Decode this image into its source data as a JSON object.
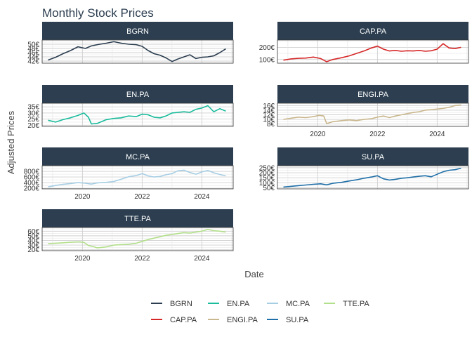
{
  "chart_data": {
    "type": "line",
    "title": "Monthly Stock Prices",
    "xlabel": "Date",
    "ylabel": "Adjusted Prices",
    "legend_position": "bottom",
    "x_ticks": [
      "2020",
      "2022",
      "2024"
    ],
    "x_tick_values": [
      2020,
      2022,
      2024
    ],
    "xlim": [
      2018.65,
      2025.05
    ],
    "series": [
      {
        "name": "BGRN",
        "color": "#2c3e50",
        "ylim": [
          41,
          52
        ],
        "y_ticks": [
          42,
          44,
          46,
          48,
          50
        ],
        "y_tick_labels": [
          "42€",
          "44€",
          "46€",
          "48€",
          "50€"
        ],
        "x": [
          2018.85,
          2019.1,
          2019.35,
          2019.6,
          2019.85,
          2020.1,
          2020.3,
          2020.5,
          2020.8,
          2021.05,
          2021.3,
          2021.55,
          2021.8,
          2022.0,
          2022.2,
          2022.4,
          2022.6,
          2022.8,
          2023.0,
          2023.2,
          2023.4,
          2023.6,
          2023.8,
          2024.0,
          2024.2,
          2024.4,
          2024.6,
          2024.8
        ],
        "y": [
          42.5,
          43.8,
          45.5,
          47.0,
          48.8,
          48.0,
          49.2,
          49.8,
          50.5,
          51.2,
          50.5,
          50.0,
          49.8,
          49.0,
          47.0,
          45.5,
          44.8,
          43.5,
          41.8,
          43.0,
          44.0,
          45.0,
          43.2,
          43.8,
          44.0,
          44.5,
          46.0,
          47.8
        ]
      },
      {
        "name": "CAP.PA",
        "color": "#d62728",
        "ylim": [
          70,
          260
        ],
        "y_ticks": [
          100,
          200
        ],
        "y_tick_labels": [
          "100€",
          "200€"
        ],
        "x": [
          2018.85,
          2019.1,
          2019.35,
          2019.6,
          2019.85,
          2020.1,
          2020.3,
          2020.5,
          2020.8,
          2021.05,
          2021.3,
          2021.55,
          2021.8,
          2022.0,
          2022.2,
          2022.4,
          2022.6,
          2022.8,
          2023.0,
          2023.2,
          2023.4,
          2023.6,
          2023.8,
          2024.0,
          2024.2,
          2024.4,
          2024.6,
          2024.8
        ],
        "y": [
          95,
          105,
          110,
          112,
          120,
          108,
          82,
          100,
          115,
          130,
          150,
          170,
          195,
          210,
          185,
          170,
          175,
          168,
          172,
          170,
          175,
          168,
          172,
          185,
          230,
          195,
          190,
          200
        ]
      },
      {
        "name": "EN.PA",
        "color": "#1abc9c",
        "ylim": [
          19,
          38
        ],
        "y_ticks": [
          20,
          25,
          30,
          35
        ],
        "y_tick_labels": [
          "20€",
          "25€",
          "30€",
          "35€"
        ],
        "x": [
          2018.85,
          2019.1,
          2019.35,
          2019.6,
          2019.85,
          2020.05,
          2020.2,
          2020.3,
          2020.5,
          2020.8,
          2021.05,
          2021.3,
          2021.55,
          2021.8,
          2022.0,
          2022.2,
          2022.4,
          2022.6,
          2022.8,
          2023.0,
          2023.2,
          2023.4,
          2023.6,
          2023.8,
          2024.0,
          2024.2,
          2024.4,
          2024.6,
          2024.8
        ],
        "y": [
          24,
          22.5,
          24.5,
          26,
          28,
          30,
          26.5,
          21,
          21.5,
          24.5,
          25.5,
          26,
          27.5,
          27,
          29,
          28.5,
          26.5,
          26,
          27.5,
          30,
          30.5,
          31,
          30.5,
          33,
          34,
          36,
          31,
          33.5,
          31.5
        ]
      },
      {
        "name": "ENGI.PA",
        "color": "#c9b78d",
        "ylim": [
          7,
          17
        ],
        "y_ticks": [
          8,
          10,
          12,
          14,
          16
        ],
        "y_tick_labels": [
          "8€",
          "10€",
          "12€",
          "14€",
          "16€"
        ],
        "x": [
          2018.85,
          2019.1,
          2019.35,
          2019.6,
          2019.85,
          2020.05,
          2020.2,
          2020.3,
          2020.5,
          2020.8,
          2021.05,
          2021.3,
          2021.55,
          2021.8,
          2022.0,
          2022.2,
          2022.4,
          2022.6,
          2022.8,
          2023.0,
          2023.2,
          2023.4,
          2023.6,
          2023.8,
          2024.0,
          2024.2,
          2024.4,
          2024.6,
          2024.8
        ],
        "y": [
          10,
          10.5,
          11,
          10.8,
          11.2,
          11.8,
          11.5,
          8.2,
          9,
          9.5,
          9.8,
          9.5,
          10,
          10.3,
          11,
          11.5,
          10.8,
          11.5,
          12,
          12.5,
          13,
          13.3,
          14,
          14.2,
          14.5,
          14.8,
          15.2,
          16,
          16.2
        ]
      },
      {
        "name": "MC.PA",
        "color": "#a6cee3",
        "ylim": [
          180,
          1000
        ],
        "y_ticks": [
          200,
          400,
          600,
          800
        ],
        "y_tick_labels": [
          "200€",
          "400€",
          "600€",
          "800€"
        ],
        "x": [
          2018.85,
          2019.1,
          2019.35,
          2019.6,
          2019.85,
          2020.1,
          2020.3,
          2020.5,
          2020.8,
          2021.05,
          2021.3,
          2021.55,
          2021.8,
          2022.0,
          2022.2,
          2022.4,
          2022.6,
          2022.8,
          2023.0,
          2023.2,
          2023.4,
          2023.6,
          2023.8,
          2024.0,
          2024.2,
          2024.4,
          2024.6,
          2024.8
        ],
        "y": [
          250,
          300,
          340,
          370,
          400,
          380,
          350,
          390,
          410,
          440,
          520,
          610,
          650,
          720,
          640,
          600,
          620,
          680,
          720,
          820,
          840,
          760,
          700,
          780,
          830,
          750,
          690,
          640
        ]
      },
      {
        "name": "SU.PA",
        "color": "#1f6fa8",
        "ylim": [
          40,
          270
        ],
        "y_ticks": [
          50,
          100,
          150,
          200,
          250
        ],
        "y_tick_labels": [
          "50€",
          "100€",
          "150€",
          "200€",
          "250€"
        ],
        "x": [
          2018.85,
          2019.1,
          2019.35,
          2019.6,
          2019.85,
          2020.1,
          2020.3,
          2020.5,
          2020.8,
          2021.05,
          2021.3,
          2021.55,
          2021.8,
          2022.0,
          2022.2,
          2022.4,
          2022.6,
          2022.8,
          2023.0,
          2023.2,
          2023.4,
          2023.6,
          2023.8,
          2024.0,
          2024.2,
          2024.4,
          2024.6,
          2024.8
        ],
        "y": [
          58,
          65,
          72,
          78,
          85,
          90,
          80,
          95,
          105,
          118,
          130,
          145,
          158,
          170,
          140,
          128,
          135,
          145,
          150,
          158,
          165,
          170,
          160,
          185,
          210,
          225,
          230,
          245
        ]
      },
      {
        "name": "TTE.PA",
        "color": "#b2df8a",
        "ylim": [
          18,
          68
        ],
        "y_ticks": [
          20,
          30,
          40,
          50,
          60
        ],
        "y_tick_labels": [
          "20€",
          "30€",
          "40€",
          "50€",
          "60€"
        ],
        "x": [
          2018.85,
          2019.1,
          2019.35,
          2019.6,
          2019.85,
          2020.05,
          2020.2,
          2020.35,
          2020.5,
          2020.8,
          2021.05,
          2021.3,
          2021.55,
          2021.8,
          2022.0,
          2022.2,
          2022.4,
          2022.6,
          2022.8,
          2023.0,
          2023.2,
          2023.4,
          2023.6,
          2023.8,
          2024.0,
          2024.2,
          2024.4,
          2024.6,
          2024.8
        ],
        "y": [
          33,
          34,
          35,
          36,
          37,
          36,
          29,
          27,
          24,
          26,
          30,
          31,
          32,
          34,
          38,
          42,
          45,
          48,
          51,
          53,
          55,
          57,
          56,
          58,
          60,
          64,
          61,
          60,
          58
        ]
      }
    ]
  }
}
